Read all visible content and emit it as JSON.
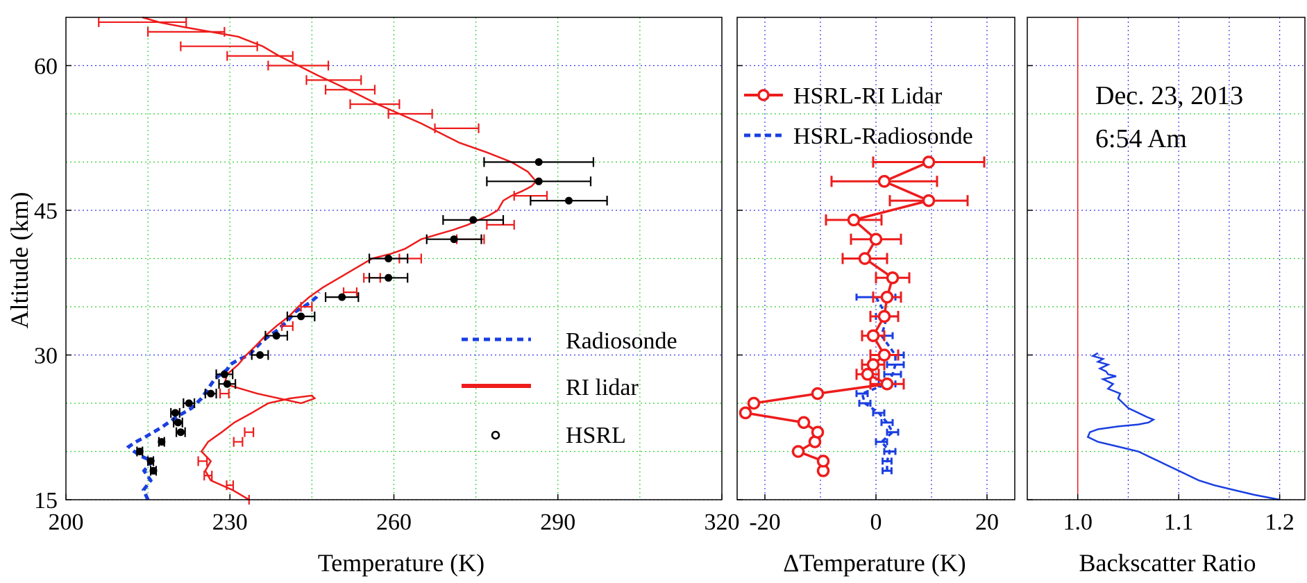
{
  "chart_data": [
    {
      "type": "line",
      "xlabel": "Temperature (K)",
      "ylabel": "Altitude (km)",
      "xlim": [
        200,
        320
      ],
      "ylim": [
        15,
        65
      ],
      "xticks": [
        200,
        230,
        260,
        290,
        320
      ],
      "yticks": [
        15,
        30,
        45,
        60
      ],
      "grid": true,
      "legend_position": "bottom-right",
      "series": [
        {
          "name": "Radiosonde",
          "color": "#1a3fe0",
          "style": "dashed",
          "x": [
            215,
            214.2,
            215.5,
            214.3,
            215.8,
            213.8,
            212.5,
            211.5,
            212.8,
            214.5,
            217.5,
            220,
            223,
            224.8,
            226,
            227.2,
            228.3,
            229.5,
            230,
            231.5,
            233.5,
            236,
            238.5,
            240.5,
            242,
            243.5,
            244.8,
            245.8,
            246.3
          ],
          "y": [
            15,
            16,
            17,
            18,
            19,
            19.5,
            20,
            20.5,
            21,
            21.5,
            22.5,
            23.5,
            24.5,
            25.5,
            26.5,
            27.5,
            28,
            28.5,
            29,
            29.5,
            30,
            31.5,
            32.5,
            33.5,
            34.5,
            35,
            35.5,
            36,
            36.5
          ]
        },
        {
          "name": "RI lidar",
          "color": "#ee1c1c",
          "style": "solid",
          "x": [
            233.5,
            230.5,
            226.5,
            225.5,
            226.5,
            224.8,
            226,
            228.5,
            230.8,
            234,
            237,
            241,
            245,
            245.5,
            243,
            235,
            229,
            229.5,
            231.5,
            233,
            234.8,
            236.5,
            238.5,
            240.8,
            242.5,
            244.5,
            247,
            250,
            253,
            256,
            259.5,
            262,
            265,
            268,
            271,
            273.5,
            275.5,
            277.5,
            279,
            280,
            281.5,
            283.5,
            285.2,
            286,
            284.5,
            281.5,
            277,
            272,
            268.5,
            265,
            261,
            257,
            253.5,
            249.8,
            246,
            242.5,
            239,
            236,
            231.5,
            226.5,
            221.5,
            217,
            214
          ],
          "y": [
            15,
            16,
            17,
            18,
            19,
            20,
            21,
            22,
            23,
            24,
            25,
            25.5,
            25.8,
            25.5,
            25,
            26,
            27,
            28,
            29,
            30,
            31,
            32,
            33,
            34,
            35,
            36,
            37,
            38,
            39,
            40,
            40.5,
            41,
            42,
            42.5,
            43,
            43.5,
            44,
            44.5,
            45,
            46,
            46.5,
            47,
            47.5,
            48,
            49,
            50,
            51,
            52,
            53,
            54,
            55,
            56,
            57,
            58,
            59,
            60,
            61,
            62,
            63,
            63.5,
            64,
            64.5,
            65
          ]
        },
        {
          "name": "HSRL",
          "color": "#000000",
          "style": "markers",
          "x": [
            216,
            215.5,
            213.5,
            217.5,
            221,
            220.5,
            220,
            222.5,
            226.5,
            229.5,
            229,
            235.5,
            238.5,
            243,
            250.5,
            259,
            259,
            271,
            274.5,
            292,
            286.5,
            286.5
          ],
          "y": [
            18,
            19,
            20,
            21,
            22,
            23,
            24,
            25,
            26,
            27,
            28,
            30,
            32,
            34,
            36,
            38,
            40,
            42,
            44,
            46,
            48,
            50
          ],
          "xerr": [
            0.5,
            0.5,
            0.5,
            0.5,
            0.8,
            0.8,
            0.8,
            1,
            1,
            1.5,
            1.5,
            1.5,
            2,
            2.5,
            3,
            3.5,
            3.5,
            5,
            5.5,
            7,
            9.5,
            10
          ],
          "ri_x": [
            233.5,
            230,
            226,
            225,
            231.5,
            233.5,
            229,
            240.5,
            244,
            252,
            256,
            263,
            274,
            279.5,
            285,
            271.5,
            263,
            256.5,
            252,
            249,
            242.5,
            235.5,
            228,
            222,
            214
          ],
          "ri_y": [
            15,
            16.5,
            17.5,
            19,
            21,
            22,
            26,
            33,
            35,
            36.5,
            38,
            40,
            42,
            43.5,
            46.5,
            53.5,
            55,
            56,
            57.5,
            58.5,
            60,
            61,
            62,
            63.5,
            64.5
          ],
          "ri_err": [
            0,
            0.6,
            0.7,
            0.8,
            0.8,
            0.8,
            0.8,
            1,
            1,
            1.2,
            1.5,
            2,
            2.5,
            2.5,
            3,
            4,
            4,
            4.5,
            4.5,
            5,
            5.5,
            6,
            7,
            7,
            8
          ]
        }
      ]
    },
    {
      "type": "line",
      "xlabel": "ΔTemperature (K)",
      "xlim": [
        -25,
        25
      ],
      "ylim": [
        15,
        65
      ],
      "xticks": [
        -20,
        0,
        20
      ],
      "grid": true,
      "legend_position": "top",
      "series": [
        {
          "name": "HSRL-RI Lidar",
          "color": "#ee1c1c",
          "style": "solid-circles",
          "x": [
            -9.5,
            -9.5,
            -14,
            -11,
            -10.5,
            -13,
            -23.5,
            -22,
            -10.5,
            2,
            -1.5,
            -0.5,
            1.5,
            -0.5,
            1.5,
            2,
            3,
            -2,
            0,
            -4,
            9.5,
            1.5,
            9.5
          ],
          "y": [
            18,
            19,
            20,
            21,
            22,
            23,
            24,
            25,
            26,
            27,
            28,
            29,
            30,
            32,
            34,
            36,
            38,
            40,
            42,
            44,
            46,
            48,
            50
          ],
          "xerr": [
            0,
            0,
            0,
            0,
            0,
            0,
            0,
            0,
            0,
            3,
            2,
            2,
            2.5,
            2,
            2.5,
            2.5,
            3,
            4,
            4.5,
            5,
            7,
            9.5,
            10
          ]
        },
        {
          "name": "HSRL-Radiosonde",
          "color": "#1a3fe0",
          "style": "dashed-errorbars",
          "x": [
            2,
            2,
            2.5,
            1,
            3,
            2,
            0.5,
            -2,
            -2.5,
            2,
            3,
            3.5,
            3.5,
            1,
            2,
            0
          ],
          "y": [
            18,
            19,
            20,
            21,
            22,
            23,
            24,
            25,
            26,
            27,
            28,
            29,
            30,
            32,
            34,
            36
          ],
          "xerr": [
            0.8,
            0.8,
            1,
            1,
            1,
            1,
            1,
            1,
            1,
            1.5,
            1.5,
            1.5,
            1.5,
            2,
            2,
            3.5
          ]
        }
      ]
    },
    {
      "type": "line",
      "xlabel": "Backscatter Ratio",
      "xlim": [
        0.95,
        1.225
      ],
      "ylim": [
        15,
        65
      ],
      "xticks": [
        1.0,
        1.1,
        1.2
      ],
      "grid": true,
      "reference_line": 1.0,
      "reference_color": "#ee1c1c",
      "series": [
        {
          "name": "",
          "color": "#1a3fe0",
          "style": "solid",
          "x": [
            1.2,
            1.175,
            1.155,
            1.135,
            1.12,
            1.11,
            1.1,
            1.09,
            1.08,
            1.07,
            1.06,
            1.04,
            1.02,
            1.01,
            1.012,
            1.02,
            1.04,
            1.06,
            1.07,
            1.075,
            1.068,
            1.06,
            1.05,
            1.045,
            1.04,
            1.042,
            1.03,
            1.035,
            1.025,
            1.038,
            1.03,
            1.028,
            1.022,
            1.03,
            1.02,
            1.025,
            1.015,
            1.02
          ],
          "y": [
            15,
            15.5,
            16,
            16.5,
            17,
            17.5,
            18,
            18.5,
            19,
            19.5,
            20,
            20.5,
            21,
            21.5,
            22,
            22.3,
            22.6,
            22.8,
            23,
            23.3,
            23.6,
            24,
            24.5,
            25,
            25.5,
            26,
            26.5,
            27,
            27.5,
            27.8,
            28,
            28.3,
            28.6,
            29,
            29.3,
            29.6,
            29.9,
            30.2
          ]
        }
      ]
    }
  ],
  "annotation": {
    "date": "Dec. 23, 2013",
    "time": "6:54 Am"
  }
}
